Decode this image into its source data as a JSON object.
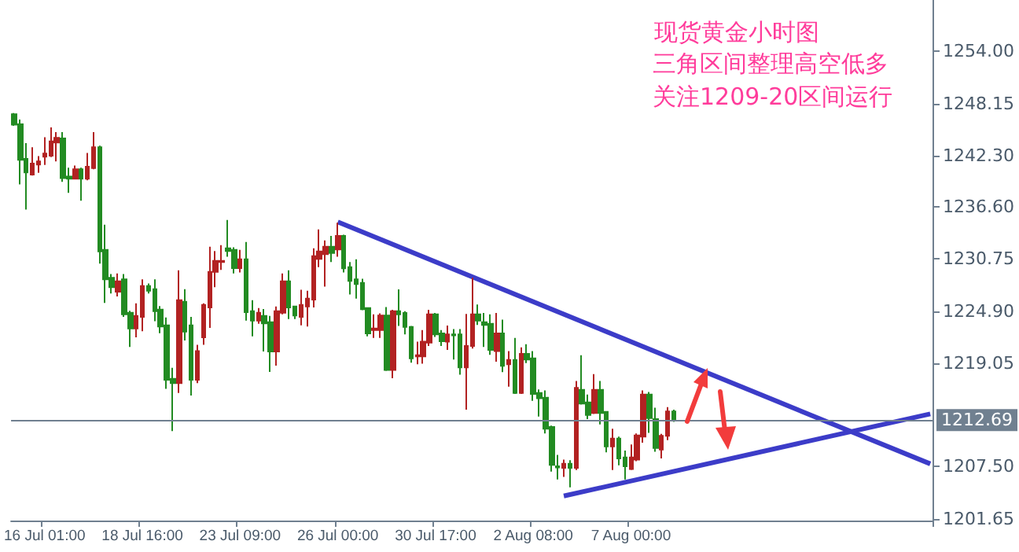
{
  "chart_data": {
    "type": "candlestick",
    "title": "现货黄金小时图",
    "annotations": [
      "三角区间整理高空低多",
      "关注1209-20区间运行"
    ],
    "categories": [
      null,
      null,
      null,
      null,
      null,
      "16 Jul 01:00",
      null,
      null,
      null,
      null,
      null,
      null,
      null,
      null,
      null,
      null,
      null,
      null,
      null,
      null,
      null,
      "18 Jul 16:00",
      null,
      null,
      null,
      null,
      null,
      null,
      null,
      null,
      null,
      null,
      null,
      null,
      null,
      null,
      null,
      "23 Jul 09:00",
      null,
      null,
      null,
      null,
      null,
      null,
      null,
      null,
      null,
      null,
      null,
      null,
      null,
      null,
      null,
      "26 Jul 00:00",
      null,
      null,
      null,
      null,
      null,
      null,
      null,
      null,
      null,
      null,
      null,
      null,
      null,
      null,
      null,
      "30 Jul 17:00",
      null,
      null,
      null,
      null,
      null,
      null,
      null,
      null,
      null,
      null,
      null,
      null,
      null,
      null,
      null,
      "2 Aug 08:00",
      null,
      null,
      null,
      null,
      null,
      null,
      null,
      null,
      null,
      null,
      null,
      null,
      null,
      null,
      null,
      "7 Aug 00:00",
      null,
      null,
      null,
      null,
      null,
      null,
      null,
      null,
      null,
      null,
      null,
      null,
      null,
      null,
      null,
      null,
      null,
      null,
      null,
      null,
      null,
      null,
      null,
      null,
      null,
      null,
      null,
      null,
      null,
      null,
      null,
      null,
      null,
      null,
      null,
      null,
      null,
      null,
      null,
      null,
      null,
      null,
      null,
      null,
      null,
      null,
      null,
      null,
      null
    ],
    "ohlc": [
      [
        1246.96,
        1247.08,
        1245.67,
        1245.79
      ],
      [
        1245.84,
        1246.37,
        1239.1,
        1241.85
      ],
      [
        1241.97,
        1243.73,
        1236.28,
        1240.45
      ],
      [
        1240.21,
        1243.26,
        1240.09,
        1241.44
      ],
      [
        1241.33,
        1242.26,
        1240.39,
        1241.68
      ],
      [
        1242.21,
        1244.38,
        1241.27,
        1242.56
      ],
      [
        1242.32,
        1245.49,
        1242.15,
        1243.91
      ],
      [
        1243.79,
        1244.96,
        1241.68,
        1244.32
      ],
      [
        1244.26,
        1244.96,
        1239.39,
        1239.8
      ],
      [
        1239.98,
        1240.97,
        1238.16,
        1239.74
      ],
      [
        1239.74,
        1241.21,
        1239.68,
        1240.8
      ],
      [
        1240.8,
        1240.97,
        1237.28,
        1239.74
      ],
      [
        1239.74,
        1242.62,
        1239.57,
        1241.09
      ],
      [
        1240.92,
        1244.96,
        1240.8,
        1243.26
      ],
      [
        1243.26,
        1243.44,
        1230.23,
        1231.58
      ],
      [
        1231.76,
        1234.58,
        1225.83,
        1228.47
      ],
      [
        1228.65,
        1229.06,
        1226.89,
        1227.59
      ],
      [
        1227.07,
        1229.12,
        1226.54,
        1228.24
      ],
      [
        1228.47,
        1229.06,
        1224.25,
        1224.54
      ],
      [
        1224.72,
        1224.95,
        1220.9,
        1222.96
      ],
      [
        1222.96,
        1225.77,
        1221.96,
        1224.37
      ],
      [
        1224.25,
        1228.47,
        1222.66,
        1227.71
      ],
      [
        1227.71,
        1228.0,
        1226.89,
        1227.18
      ],
      [
        1227.36,
        1228.47,
        1223.78,
        1224.89
      ],
      [
        1225.07,
        1225.48,
        1222.43,
        1223.19
      ],
      [
        1223.31,
        1224.19,
        1216.21,
        1217.21
      ],
      [
        1217.32,
        1218.56,
        1211.46,
        1216.85
      ],
      [
        1216.85,
        1229.47,
        1215.74,
        1226.13
      ],
      [
        1225.95,
        1227.36,
        1221.61,
        1222.61
      ],
      [
        1223.31,
        1224.25,
        1215.45,
        1217.21
      ],
      [
        1217.21,
        1221.14,
        1216.85,
        1220.43
      ],
      [
        1221.96,
        1225.77,
        1221.14,
        1225.6
      ],
      [
        1225.31,
        1232.11,
        1223.02,
        1229.3
      ],
      [
        1229.3,
        1231.64,
        1227.59,
        1230.53
      ],
      [
        1230.41,
        1232.29,
        1229.53,
        1230.53
      ],
      [
        1231.94,
        1235.11,
        1231.0,
        1231.64
      ],
      [
        1231.76,
        1232.05,
        1229.12,
        1229.71
      ],
      [
        1229.71,
        1231.76,
        1229.24,
        1230.7
      ],
      [
        1230.7,
        1232.64,
        1223.84,
        1224.78
      ],
      [
        1224.89,
        1226.13,
        1222.08,
        1223.84
      ],
      [
        1223.84,
        1225.25,
        1223.49,
        1224.72
      ],
      [
        1224.37,
        1225.13,
        1220.38,
        1223.54
      ],
      [
        1223.66,
        1224.37,
        1218.09,
        1220.38
      ],
      [
        1220.38,
        1225.42,
        1218.79,
        1224.89
      ],
      [
        1224.72,
        1229.12,
        1224.54,
        1228.24
      ],
      [
        1228.24,
        1229.47,
        1224.01,
        1225.31
      ],
      [
        1225.42,
        1225.48,
        1224.01,
        1224.42
      ],
      [
        1224.25,
        1227.3,
        1223.31,
        1225.6
      ],
      [
        1225.42,
        1227.18,
        1223.19,
        1226.3
      ],
      [
        1226.19,
        1231.94,
        1225.31,
        1231.06
      ],
      [
        1230.76,
        1234.05,
        1229.82,
        1231.58
      ],
      [
        1231.29,
        1232.82,
        1227.65,
        1232.11
      ],
      [
        1232.11,
        1233.34,
        1230.41,
        1231.41
      ],
      [
        1231.81,
        1234.81,
        1230.99,
        1233.34
      ],
      [
        1233.34,
        1233.46,
        1229.23,
        1229.7
      ],
      [
        1229.82,
        1230.4,
        1226.77,
        1228.29
      ],
      [
        1228.47,
        1230.7,
        1226.3,
        1227.94
      ],
      [
        1228.06,
        1228.53,
        1225.01,
        1225.12
      ],
      [
        1225.24,
        1225.3,
        1222.07,
        1222.42
      ],
      [
        1222.78,
        1224.54,
        1221.9,
        1222.95
      ],
      [
        1222.78,
        1224.65,
        1221.9,
        1224.42
      ],
      [
        1224.42,
        1225.36,
        1218.2,
        1218.32
      ],
      [
        1218.32,
        1225.06,
        1217.38,
        1224.89
      ],
      [
        1224.89,
        1227.35,
        1223.24,
        1224.54
      ],
      [
        1224.71,
        1224.89,
        1222.31,
        1223.13
      ],
      [
        1223.13,
        1223.24,
        1219.14,
        1219.61
      ],
      [
        1219.84,
        1221.48,
        1218.96,
        1219.96
      ],
      [
        1219.84,
        1222.78,
        1219.02,
        1221.48
      ],
      [
        1221.37,
        1225.06,
        1221.01,
        1224.54
      ],
      [
        1224.54,
        1224.71,
        1222.01,
        1222.31
      ],
      [
        1222.42,
        1222.78,
        1221.01,
        1221.54
      ],
      [
        1221.48,
        1223.3,
        1220.55,
        1222.31
      ],
      [
        1222.31,
        1222.89,
        1219.49,
        1222.19
      ],
      [
        1222.31,
        1222.89,
        1217.79,
        1218.61
      ],
      [
        1218.61,
        1224.59,
        1213.86,
        1221.01
      ],
      [
        1221.01,
        1228.64,
        1220.72,
        1224.54
      ],
      [
        1224.54,
        1225.65,
        1223.36,
        1223.83
      ],
      [
        1223.66,
        1224.71,
        1220.9,
        1223.36
      ],
      [
        1223.48,
        1224.54,
        1220.02,
        1220.55
      ],
      [
        1220.43,
        1224.71,
        1219.25,
        1222.42
      ],
      [
        1222.42,
        1223.95,
        1218.08,
        1218.78
      ],
      [
        1218.96,
        1220.43,
        1216.44,
        1219.43
      ],
      [
        1219.43,
        1221.9,
        1215.62,
        1215.73
      ],
      [
        1215.73,
        1220.84,
        1215.62,
        1220.13
      ],
      [
        1220.13,
        1221.19,
        1219.08,
        1219.49
      ],
      [
        1219.61,
        1220.43,
        1214.85,
        1215.62
      ],
      [
        1215.73,
        1216.14,
        1213.09,
        1215.15
      ],
      [
        1215.21,
        1216.03,
        1211.21,
        1211.74
      ],
      [
        1211.92,
        1212.09,
        1206.93,
        1207.69
      ],
      [
        1207.52,
        1208.81,
        1206.05,
        1207.4
      ],
      [
        1207.34,
        1208.28,
        1206.34,
        1207.81
      ],
      [
        1207.81,
        1208.22,
        1205.17,
        1207.34
      ],
      [
        1207.34,
        1217.08,
        1207.11,
        1216.32
      ],
      [
        1216.09,
        1219.96,
        1214.44,
        1214.56
      ],
      [
        1214.68,
        1215.56,
        1212.8,
        1213.27
      ],
      [
        1213.5,
        1217.85,
        1213.39,
        1216.09
      ],
      [
        1216.09,
        1217.08,
        1212.21,
        1213.5
      ],
      [
        1213.62,
        1213.7,
        1209.1,
        1209.75
      ],
      [
        1209.75,
        1211.74,
        1207.11,
        1210.63
      ],
      [
        1210.63,
        1210.86,
        1207.63,
        1208.4
      ],
      [
        1208.51,
        1209.28,
        1206.05,
        1207.52
      ],
      [
        1207.22,
        1209.98,
        1207.1,
        1208.51
      ],
      [
        1208.28,
        1211.21,
        1208.1,
        1210.98
      ],
      [
        1210.86,
        1216.03,
        1210.16,
        1215.56
      ],
      [
        1215.56,
        1215.85,
        1211.27,
        1212.92
      ],
      [
        1212.8,
        1214.09,
        1209.16,
        1209.57
      ],
      [
        1209.4,
        1211.16,
        1208.4,
        1210.93
      ],
      [
        1210.93,
        1214.15,
        1210.46,
        1213.68
      ],
      [
        1213.68,
        1213.86,
        1212.51,
        1212.69
      ],
      null,
      null,
      null,
      null,
      null,
      null,
      null,
      null,
      null,
      null,
      null,
      null,
      null,
      null,
      null,
      null,
      null,
      null,
      null,
      null,
      null,
      null,
      null,
      null,
      null,
      null,
      null,
      null,
      null,
      null,
      null,
      null,
      null,
      null,
      null,
      null,
      null,
      null,
      null,
      null,
      null,
      null
    ],
    "series": [
      {
        "type": "line",
        "color": "#3c3cc8",
        "values": [
          null,
          null,
          null,
          null,
          null,
          null,
          null,
          null,
          null,
          null,
          null,
          null,
          null,
          null,
          null,
          null,
          null,
          null,
          null,
          null,
          null,
          null,
          null,
          null,
          null,
          null,
          null,
          null,
          null,
          null,
          null,
          null,
          null,
          null,
          null,
          null,
          null,
          null,
          null,
          null,
          null,
          null,
          null,
          null,
          null,
          null,
          null,
          null,
          null,
          null,
          null,
          null,
          null,
          1234.9,
          null,
          null,
          null,
          null,
          null,
          null,
          null,
          null,
          null,
          null,
          null,
          null,
          null,
          null,
          null,
          null,
          null,
          null,
          null,
          null,
          null,
          null,
          null,
          null,
          null,
          null,
          null,
          null,
          null,
          null,
          null,
          null,
          null,
          null,
          null,
          null,
          null,
          null,
          null,
          null,
          null,
          null,
          null,
          null,
          null,
          null,
          null,
          null,
          null,
          null,
          null,
          null,
          null,
          null,
          null,
          null,
          null,
          null,
          null,
          null,
          null,
          null,
          null,
          null,
          null,
          null,
          null,
          null,
          null,
          null,
          null,
          null,
          null,
          null,
          null,
          null,
          null,
          null,
          null,
          null,
          null,
          null,
          null,
          null,
          null,
          null,
          null,
          null,
          null,
          null,
          null,
          null,
          null,
          null,
          null,
          null,
          1207.8
        ]
      },
      {
        "type": "line",
        "color": "#3c3cc8",
        "values": [
          null,
          null,
          null,
          null,
          null,
          null,
          null,
          null,
          null,
          null,
          null,
          null,
          null,
          null,
          null,
          null,
          null,
          null,
          null,
          null,
          null,
          null,
          null,
          null,
          null,
          null,
          null,
          null,
          null,
          null,
          null,
          null,
          null,
          null,
          null,
          null,
          null,
          null,
          null,
          null,
          null,
          null,
          null,
          null,
          null,
          null,
          null,
          null,
          null,
          null,
          null,
          null,
          null,
          null,
          null,
          null,
          null,
          null,
          null,
          null,
          null,
          null,
          null,
          null,
          null,
          null,
          null,
          null,
          null,
          null,
          null,
          null,
          null,
          null,
          null,
          null,
          null,
          null,
          null,
          null,
          null,
          null,
          null,
          null,
          null,
          null,
          null,
          null,
          null,
          null,
          1204.2,
          null,
          null,
          null,
          null,
          null,
          null,
          null,
          null,
          null,
          null,
          null,
          null,
          null,
          null,
          null,
          null,
          null,
          null,
          null,
          null,
          null,
          null,
          null,
          null,
          null,
          null,
          null,
          null,
          null,
          null,
          null,
          null,
          null,
          null,
          null,
          null,
          null,
          null,
          null,
          null,
          null,
          null,
          null,
          null,
          null,
          null,
          null,
          null,
          null,
          null,
          null,
          null,
          null,
          null,
          null,
          null,
          null,
          null,
          null,
          1213.4
        ]
      }
    ],
    "ylim": [
      1201.45,
      1259.75
    ],
    "yticks": [
      1201.65,
      {
        "value": 1207.5,
        "label": "1207.50"
      },
      1219.05,
      {
        "value": 1224.9,
        "label": "1224.90"
      },
      1230.75,
      {
        "value": 1236.6,
        "label": "1236.60"
      },
      {
        "value": 1242.3,
        "label": "1242.30"
      },
      1248.15,
      {
        "value": 1254,
        "label": "1254.00"
      }
    ],
    "ref_lines": [
      {
        "axis": "y",
        "value": 1212.69,
        "label": "1212.69",
        "color": "#708090"
      }
    ]
  }
}
